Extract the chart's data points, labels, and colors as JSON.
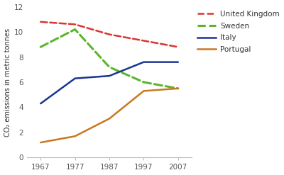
{
  "years": [
    1967,
    1977,
    1987,
    1997,
    2007
  ],
  "series": {
    "United Kingdom": [
      10.8,
      10.6,
      9.8,
      9.3,
      8.8
    ],
    "Sweden": [
      8.8,
      10.2,
      7.2,
      6.0,
      5.5
    ],
    "Italy": [
      4.3,
      6.3,
      6.5,
      7.6,
      7.6
    ],
    "Portugal": [
      1.2,
      1.7,
      3.1,
      5.3,
      5.5
    ]
  },
  "colors": {
    "United Kingdom": "#d93535",
    "Sweden": "#5db52e",
    "Italy": "#1a3590",
    "Portugal": "#c87820"
  },
  "styles": {
    "United Kingdom": {
      "linestyle": "--",
      "linewidth": 1.8
    },
    "Sweden": {
      "linestyle": "--",
      "linewidth": 2.2
    },
    "Italy": {
      "linestyle": "-",
      "linewidth": 1.8
    },
    "Portugal": {
      "linestyle": "-",
      "linewidth": 1.8
    }
  },
  "ylabel": "CO₂ emissions in metric tonnes",
  "ylim": [
    0,
    12
  ],
  "yticks": [
    0,
    2,
    4,
    6,
    8,
    10,
    12
  ],
  "bg_plot": "#ffffff",
  "bg_fig": "#ffffff",
  "legend_order": [
    "United Kingdom",
    "Sweden",
    "Italy",
    "Portugal"
  ]
}
